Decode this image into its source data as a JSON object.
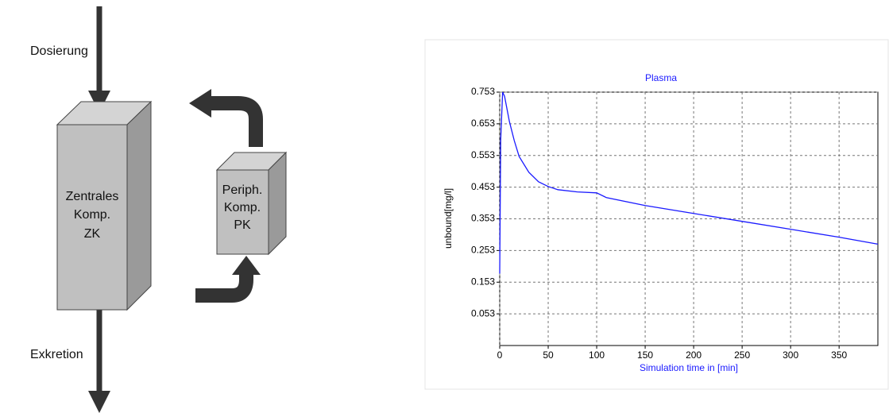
{
  "diagram": {
    "dosing": "Dosierung",
    "excretion": "Exkretion",
    "central": [
      "Zentrales",
      "Komp.",
      "ZK"
    ],
    "peripheral": [
      "Periph.",
      "Komp.",
      "PK"
    ]
  },
  "chart_data": {
    "type": "line",
    "title": "Plasma",
    "x_label": "Simulation time in [min]",
    "y_label": "unbound[mg/l]",
    "xlim": [
      0,
      390
    ],
    "ylim": [
      -0.047,
      0.753
    ],
    "xticks": [
      0,
      50,
      100,
      150,
      200,
      250,
      300,
      350
    ],
    "yticks": [
      0.053,
      0.153,
      0.253,
      0.353,
      0.453,
      0.553,
      0.653,
      0.753
    ],
    "grid": true,
    "series": [
      {
        "name": "Plasma",
        "color": "#1a1aff",
        "x": [
          0,
          1,
          3,
          5,
          10,
          15,
          20,
          30,
          40,
          50,
          60,
          80,
          100,
          110,
          150,
          200,
          250,
          300,
          350,
          390
        ],
        "values": [
          0.18,
          0.6,
          0.753,
          0.74,
          0.66,
          0.6,
          0.55,
          0.5,
          0.47,
          0.455,
          0.445,
          0.438,
          0.435,
          0.42,
          0.395,
          0.37,
          0.345,
          0.32,
          0.295,
          0.273
        ]
      }
    ]
  }
}
